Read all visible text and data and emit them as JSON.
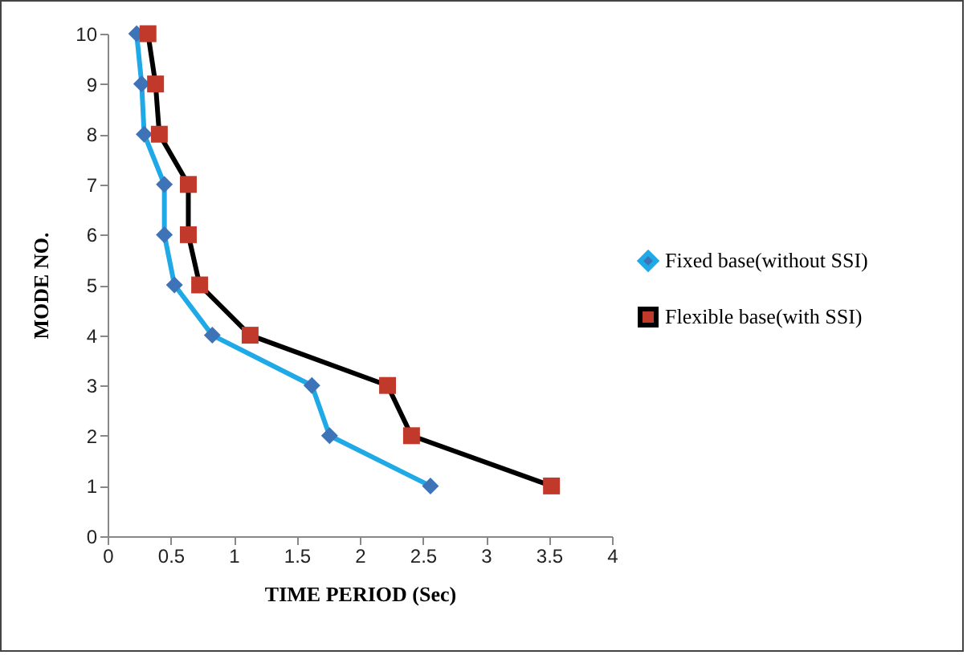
{
  "chart_data": {
    "type": "line",
    "xlabel": "TIME PERIOD (Sec)",
    "ylabel": "MODE NO.",
    "xlim": [
      0,
      4
    ],
    "xticks": [
      0,
      0.5,
      1,
      1.5,
      2,
      2.5,
      3,
      3.5,
      4
    ],
    "ylim": [
      0,
      10
    ],
    "yticks": [
      0,
      1,
      2,
      3,
      4,
      5,
      6,
      7,
      8,
      9,
      10
    ],
    "grid": false,
    "legend": "right",
    "series": [
      {
        "name": "Fixed base(without SSI)",
        "color": "#1fa9e6",
        "marker": "diamond",
        "x": [
          2.56,
          1.76,
          1.62,
          0.83,
          0.53,
          0.45,
          0.45,
          0.29,
          0.27,
          0.23
        ],
        "values": [
          1,
          2,
          3,
          4,
          5,
          6,
          7,
          8,
          9,
          10
        ]
      },
      {
        "name": "Flexible base(with SSI)",
        "color": "#000000",
        "marker": "square",
        "x": [
          3.52,
          2.41,
          2.22,
          1.13,
          0.73,
          0.64,
          0.64,
          0.41,
          0.38,
          0.32
        ],
        "values": [
          1,
          2,
          3,
          4,
          5,
          6,
          7,
          8,
          9,
          10
        ]
      }
    ]
  }
}
